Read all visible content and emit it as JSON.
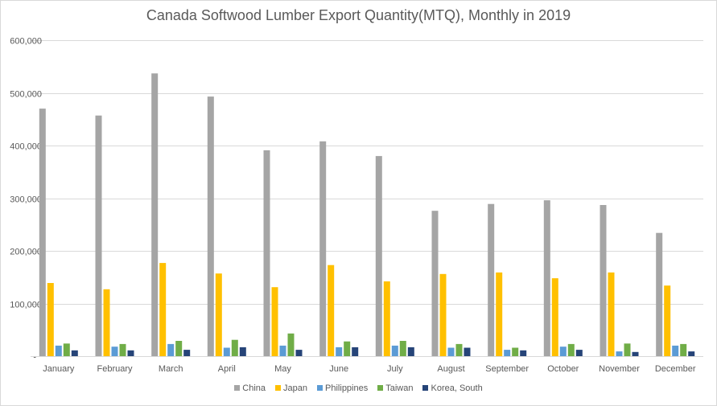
{
  "chart_data": {
    "type": "bar",
    "title": "Canada Softwood Lumber Export Quantity(MTQ), Monthly in 2019",
    "xlabel": "",
    "ylabel": "",
    "ylim": [
      0,
      600000
    ],
    "yticks": [
      0,
      100000,
      200000,
      300000,
      400000,
      500000,
      600000
    ],
    "ytick_labels": [
      "-",
      "100,000",
      "200,000",
      "300,000",
      "400,000",
      "500,000",
      "600,000"
    ],
    "grid": true,
    "legend_position": "bottom",
    "categories": [
      "January",
      "February",
      "March",
      "April",
      "May",
      "June",
      "July",
      "August",
      "September",
      "October",
      "November",
      "December"
    ],
    "series": [
      {
        "name": "China",
        "color": "#a5a5a5",
        "values": [
          470000,
          457000,
          537000,
          493000,
          391000,
          408000,
          380000,
          276000,
          289000,
          296000,
          287000,
          234000
        ]
      },
      {
        "name": "Japan",
        "color": "#ffc000",
        "values": [
          139000,
          127000,
          177000,
          157000,
          131000,
          173000,
          142000,
          156000,
          159000,
          148000,
          159000,
          134000
        ]
      },
      {
        "name": "Philippines",
        "color": "#5b9bd5",
        "values": [
          20000,
          18000,
          23000,
          16000,
          20000,
          17000,
          20000,
          16000,
          12000,
          18000,
          9000,
          20000
        ]
      },
      {
        "name": "Taiwan",
        "color": "#70ad47",
        "values": [
          24000,
          23000,
          29000,
          31000,
          43000,
          28000,
          29000,
          23000,
          16000,
          23000,
          24000,
          23000
        ]
      },
      {
        "name": "Korea, South",
        "color": "#264478",
        "values": [
          11000,
          11000,
          12000,
          17000,
          12000,
          17000,
          17000,
          16000,
          11000,
          12000,
          8000,
          9000
        ]
      }
    ]
  }
}
